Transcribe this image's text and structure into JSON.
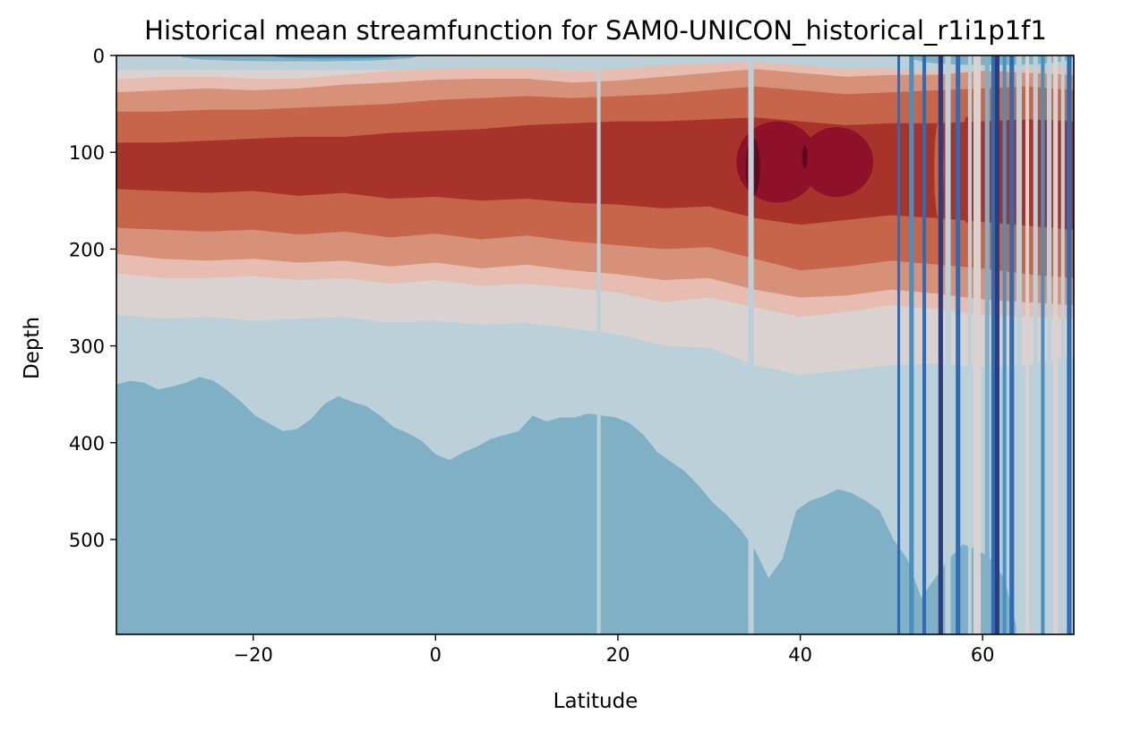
{
  "chart_data": {
    "type": "contourf",
    "title": "Historical mean streamfunction for SAM0-UNICON_historical_r1i1p1f1",
    "xlabel": "Latitude",
    "ylabel": "Depth",
    "xlim": [
      -35,
      70
    ],
    "ylim": [
      598,
      0
    ],
    "y_inverted": true,
    "x_ticks": [
      -20,
      0,
      20,
      40,
      60
    ],
    "x_tick_labels": [
      "−20",
      "0",
      "20",
      "40",
      "60"
    ],
    "y_ticks": [
      0,
      100,
      200,
      300,
      400,
      500
    ],
    "y_tick_labels": [
      "0",
      "100",
      "200",
      "300",
      "400",
      "500"
    ],
    "grid": false,
    "legend": "none",
    "colormap": "RdBu_r",
    "level_colors": [
      "#2a3d7e",
      "#2e6cb6",
      "#4790c0",
      "#7fb0c6",
      "#bbd0d9",
      "#d9d2d1",
      "#e6bdb0",
      "#d89179",
      "#c7654b",
      "#a8332b",
      "#8e1129",
      "#5e0a1d"
    ],
    "bands": [
      {
        "level": 6,
        "top": [
          25,
          22,
          22,
          24,
          24,
          20,
          16,
          14,
          12,
          12,
          16,
          14,
          10,
          8,
          6,
          10,
          14,
          12,
          10,
          6,
          8,
          12
        ],
        "bottom": [
          225,
          230,
          230,
          228,
          232,
          230,
          236,
          232,
          238,
          236,
          240,
          245,
          255,
          250,
          260,
          270,
          265,
          258,
          262,
          268,
          270,
          272
        ]
      },
      {
        "level": 7,
        "top": [
          38,
          36,
          34,
          36,
          34,
          30,
          28,
          25,
          24,
          24,
          28,
          26,
          22,
          18,
          14,
          18,
          22,
          20,
          20,
          16,
          18,
          20
        ],
        "bottom": [
          205,
          210,
          212,
          210,
          214,
          212,
          218,
          214,
          220,
          216,
          222,
          226,
          232,
          230,
          242,
          250,
          248,
          242,
          246,
          252,
          255,
          258
        ]
      },
      {
        "level": 8,
        "top": [
          58,
          58,
          56,
          56,
          54,
          52,
          50,
          46,
          44,
          42,
          44,
          42,
          40,
          36,
          32,
          36,
          40,
          38,
          36,
          34,
          32,
          36
        ],
        "bottom": [
          178,
          180,
          182,
          180,
          185,
          182,
          188,
          184,
          190,
          186,
          192,
          196,
          200,
          198,
          210,
          222,
          218,
          212,
          216,
          220,
          226,
          230
        ]
      },
      {
        "level": 9,
        "top": [
          90,
          90,
          88,
          86,
          84,
          84,
          80,
          78,
          76,
          72,
          70,
          68,
          68,
          66,
          64,
          68,
          72,
          70,
          70,
          68,
          66,
          68
        ],
        "bottom": [
          138,
          140,
          142,
          140,
          145,
          142,
          148,
          146,
          150,
          148,
          152,
          154,
          158,
          156,
          168,
          175,
          170,
          165,
          168,
          172,
          176,
          180
        ]
      }
    ],
    "hot_spots": [
      {
        "level": 10,
        "x": 37.5,
        "y": 110,
        "rx": 4.5,
        "ry": 42
      },
      {
        "level": 10,
        "x": 44.0,
        "y": 110,
        "rx": 4.0,
        "ry": 36
      },
      {
        "level": 11,
        "x": 34.8,
        "y": 115,
        "rx": 0.8,
        "ry": 30
      },
      {
        "level": 11,
        "x": 40.5,
        "y": 105,
        "rx": 0.3,
        "ry": 12
      },
      {
        "level": 9,
        "x": 58.3,
        "y": 118,
        "rx": 0.7,
        "ry": 55
      },
      {
        "level": 8,
        "x": 55.2,
        "y": 118,
        "rx": 0.5,
        "ry": 50
      }
    ],
    "blue_layers": [
      {
        "level": 4,
        "top": [
          290,
          292,
          295,
          298,
          295,
          292,
          294,
          300,
          302,
          298,
          296,
          300,
          296,
          292,
          288,
          292,
          296,
          290,
          292,
          296,
          300,
          298,
          296,
          300,
          298,
          296,
          300,
          300,
          302,
          300,
          298,
          304,
          306,
          300,
          298,
          302,
          296,
          300,
          302,
          298,
          300,
          310,
          318,
          330,
          330,
          345,
          332,
          322,
          316,
          320,
          300,
          292,
          294,
          290,
          292,
          296,
          298,
          300,
          300,
          300,
          300,
          302,
          300,
          300,
          304,
          300,
          300,
          300,
          298,
          300
        ]
      },
      {
        "level": 3,
        "top": [
          340,
          336,
          338,
          345,
          342,
          338,
          332,
          336,
          346,
          358,
          372,
          380,
          388,
          386,
          376,
          360,
          352,
          358,
          362,
          372,
          384,
          390,
          398,
          412,
          418,
          410,
          404,
          396,
          392,
          388,
          372,
          378,
          374,
          374,
          370,
          372,
          374,
          380,
          392,
          410,
          420,
          430,
          445,
          462,
          475,
          490,
          510,
          540,
          520,
          470,
          460,
          455,
          448,
          452,
          460,
          470,
          500,
          520,
          560,
          540,
          520,
          505,
          510,
          520,
          540,
          598,
          598,
          598,
          598,
          598
        ]
      }
    ],
    "top_blue": [
      {
        "level": 4,
        "x_start": -35,
        "x_end": 0,
        "depth": 10
      },
      {
        "level": 3,
        "x_start": -28,
        "x_end": -2,
        "depth": 6
      },
      {
        "level": 2,
        "x_start": -18,
        "x_end": -4,
        "depth": 3
      },
      {
        "level": 4,
        "x_start": 45,
        "x_end": 70,
        "depth": 16
      },
      {
        "level": 3,
        "x_start": 52,
        "x_end": 70,
        "depth": 10
      }
    ],
    "stripes": [
      {
        "x": 17.9,
        "w": 0.4,
        "level": 4
      },
      {
        "x": 34.6,
        "w": 0.6,
        "level": 4
      },
      {
        "x": 50.8,
        "w": 0.3,
        "level": 1
      },
      {
        "x": 52.2,
        "w": 0.5,
        "level": 2
      },
      {
        "x": 53.6,
        "w": 0.4,
        "level": 1
      },
      {
        "x": 55.4,
        "w": 0.5,
        "level": 0
      },
      {
        "x": 56.2,
        "w": 0.6,
        "level": 4
      },
      {
        "x": 57.3,
        "w": 0.5,
        "level": 1
      },
      {
        "x": 58.6,
        "w": 0.4,
        "level": 4
      },
      {
        "x": 59.4,
        "w": 0.8,
        "level": 5
      },
      {
        "x": 60.5,
        "w": 0.5,
        "level": 3
      },
      {
        "x": 61.2,
        "w": 0.5,
        "level": 1
      },
      {
        "x": 61.6,
        "w": 0.5,
        "level": 0
      },
      {
        "x": 62.4,
        "w": 0.4,
        "level": 2
      },
      {
        "x": 63.2,
        "w": 0.5,
        "level": 1
      },
      {
        "x": 64.0,
        "w": 0.6,
        "level": 4
      },
      {
        "x": 64.9,
        "w": 0.4,
        "level": 5
      },
      {
        "x": 65.8,
        "w": 0.5,
        "level": 4
      },
      {
        "x": 66.6,
        "w": 0.4,
        "level": 2
      },
      {
        "x": 67.3,
        "w": 0.5,
        "level": 4
      },
      {
        "x": 68.0,
        "w": 0.5,
        "level": 5
      },
      {
        "x": 68.8,
        "w": 0.4,
        "level": 4
      },
      {
        "x": 69.5,
        "w": 0.5,
        "level": 1
      }
    ]
  }
}
